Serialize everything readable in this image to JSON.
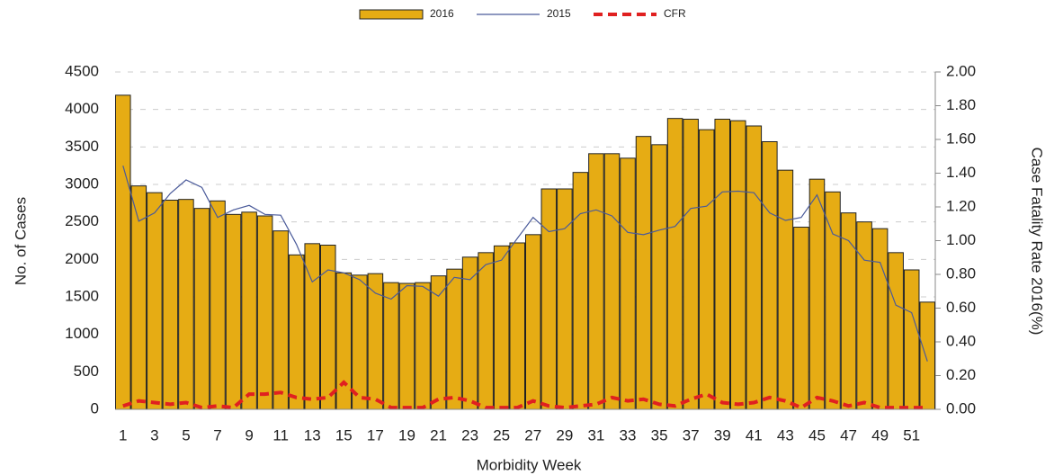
{
  "chart_data": {
    "type": "bar",
    "categories": [
      1,
      null,
      3,
      null,
      5,
      null,
      7,
      null,
      9,
      null,
      11,
      null,
      13,
      null,
      15,
      null,
      17,
      null,
      19,
      null,
      21,
      null,
      23,
      null,
      25,
      null,
      27,
      null,
      29,
      null,
      31,
      null,
      33,
      null,
      35,
      null,
      37,
      null,
      39,
      null,
      41,
      null,
      43,
      null,
      45,
      null,
      47,
      null,
      49,
      null,
      51,
      null
    ],
    "series": [
      {
        "name": "2016",
        "type": "bar",
        "color": "#e6ac14",
        "values": [
          4190,
          2980,
          2890,
          2790,
          2800,
          2680,
          2780,
          2600,
          2630,
          2580,
          2380,
          2060,
          2210,
          2190,
          1820,
          1790,
          1810,
          1690,
          1680,
          1690,
          1780,
          1870,
          2030,
          2090,
          2180,
          2220,
          2330,
          2940,
          2940,
          3160,
          3410,
          3410,
          3350,
          3640,
          3530,
          3880,
          3870,
          3730,
          3870,
          3850,
          3780,
          3570,
          3190,
          2430,
          3070,
          2900,
          2620,
          2500,
          2410,
          2090,
          1860,
          1430
        ]
      },
      {
        "name": "2015",
        "type": "line",
        "color": "#4a5a9a",
        "values": [
          3250,
          2510,
          2620,
          2880,
          3060,
          2960,
          2560,
          2660,
          2720,
          2600,
          2590,
          2200,
          1700,
          1860,
          1820,
          1730,
          1550,
          1470,
          1650,
          1640,
          1510,
          1760,
          1730,
          1930,
          1990,
          2280,
          2560,
          2370,
          2410,
          2610,
          2660,
          2580,
          2360,
          2330,
          2390,
          2440,
          2680,
          2710,
          2900,
          2910,
          2890,
          2620,
          2520,
          2560,
          2860,
          2340,
          2250,
          1990,
          1960,
          1390,
          1290,
          640
        ]
      },
      {
        "name": "CFR",
        "type": "line",
        "axis": "y2",
        "linestyle": "dashed",
        "color": "#e02020",
        "values": [
          0.02,
          0.05,
          0.04,
          0.03,
          0.04,
          0.01,
          0.02,
          0.01,
          0.09,
          0.09,
          0.1,
          0.07,
          0.06,
          0.07,
          0.16,
          0.07,
          0.06,
          0.01,
          0.01,
          0.01,
          0.06,
          0.07,
          0.05,
          0.01,
          0.01,
          0.01,
          0.05,
          0.02,
          0.01,
          0.02,
          0.03,
          0.07,
          0.05,
          0.06,
          0.03,
          0.02,
          0.06,
          0.09,
          0.04,
          0.03,
          0.04,
          0.07,
          0.05,
          0.01,
          0.07,
          0.05,
          0.02,
          0.04,
          0.01,
          0.01,
          0.01,
          0.01
        ]
      }
    ],
    "xlabel": "Morbidity Week",
    "ylabel": "No. of Cases",
    "y2label": "Case Fatality Rate 2016(%)",
    "ylim": [
      0,
      4500
    ],
    "yticks": [
      0,
      500,
      1000,
      1500,
      2000,
      2500,
      3000,
      3500,
      4000,
      4500
    ],
    "y2lim": [
      0,
      2
    ],
    "y2ticks": [
      {
        "value": 0,
        "label": "0.00"
      },
      {
        "value": 0.2,
        "label": "0.20"
      },
      {
        "value": 0.4,
        "label": "0.40"
      },
      {
        "value": 0.6,
        "label": "0.60"
      },
      {
        "value": 0.8,
        "label": "0.80"
      },
      {
        "value": 1,
        "label": "1.00"
      },
      {
        "value": 1.2,
        "label": "1.20"
      },
      {
        "value": 1.4,
        "label": "1.40"
      },
      {
        "value": 1.6,
        "label": "1.60"
      },
      {
        "value": 1.8,
        "label": "1.80"
      },
      {
        "value": 2,
        "label": "2.00"
      }
    ],
    "grid": true,
    "legend": "top"
  }
}
